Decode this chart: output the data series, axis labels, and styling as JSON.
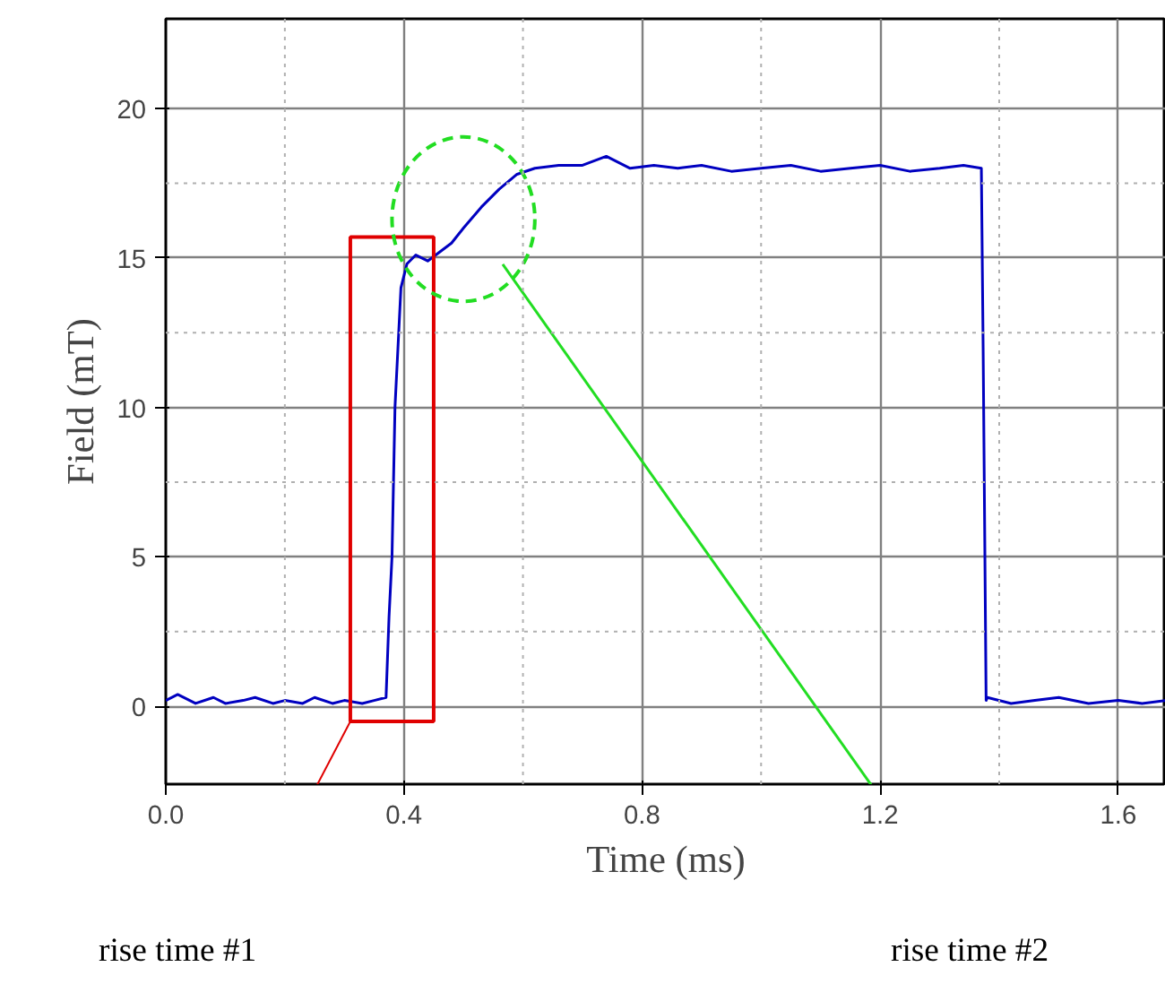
{
  "chart_data": {
    "type": "line",
    "xlabel": "Time (ms)",
    "ylabel": "Field (mT)",
    "xlim": [
      0,
      1.68
    ],
    "ylim": [
      -2.6,
      23
    ],
    "xticks": [
      {
        "value": 0,
        "label": "0.0"
      },
      0.4,
      0.8,
      1.2,
      1.6
    ],
    "yticks": [
      0,
      5,
      10,
      15,
      20
    ],
    "grid": true,
    "marker": "none",
    "line_style": "solid",
    "x": [
      0,
      0.02,
      0.05,
      0.08,
      0.1,
      0.13,
      0.15,
      0.18,
      0.2,
      0.23,
      0.25,
      0.28,
      0.3,
      0.33,
      0.35,
      0.37,
      0.375,
      0.38,
      0.385,
      0.39,
      0.395,
      0.405,
      0.42,
      0.44,
      0.46,
      0.48,
      0.5,
      0.53,
      0.56,
      0.59,
      0.62,
      0.66,
      0.7,
      0.74,
      0.78,
      0.82,
      0.86,
      0.9,
      0.95,
      1.0,
      1.05,
      1.1,
      1.15,
      1.2,
      1.25,
      1.3,
      1.34,
      1.37,
      1.373,
      1.378,
      1.38,
      1.42,
      1.46,
      1.5,
      1.55,
      1.6,
      1.64,
      1.68
    ],
    "series": [
      {
        "color": "#0000c0",
        "values": [
          0.2,
          0.4,
          0.1,
          0.3,
          0.1,
          0.2,
          0.3,
          0.1,
          0.2,
          0.1,
          0.3,
          0.1,
          0.2,
          0.1,
          0.2,
          0.3,
          3,
          5,
          10,
          12,
          14,
          14.8,
          15.1,
          14.9,
          15.2,
          15.5,
          16,
          16.7,
          17.3,
          17.8,
          18,
          18.1,
          18.1,
          18.4,
          18,
          18.1,
          18,
          18.1,
          17.9,
          18,
          18.1,
          17.9,
          18,
          18.1,
          17.9,
          18,
          18.1,
          18,
          12,
          0.2,
          0.3,
          0.1,
          0.2,
          0.3,
          0.1,
          0.2,
          0.1,
          0.2
        ]
      }
    ],
    "annotations": [
      "rise time #1",
      "rise time #2"
    ]
  }
}
